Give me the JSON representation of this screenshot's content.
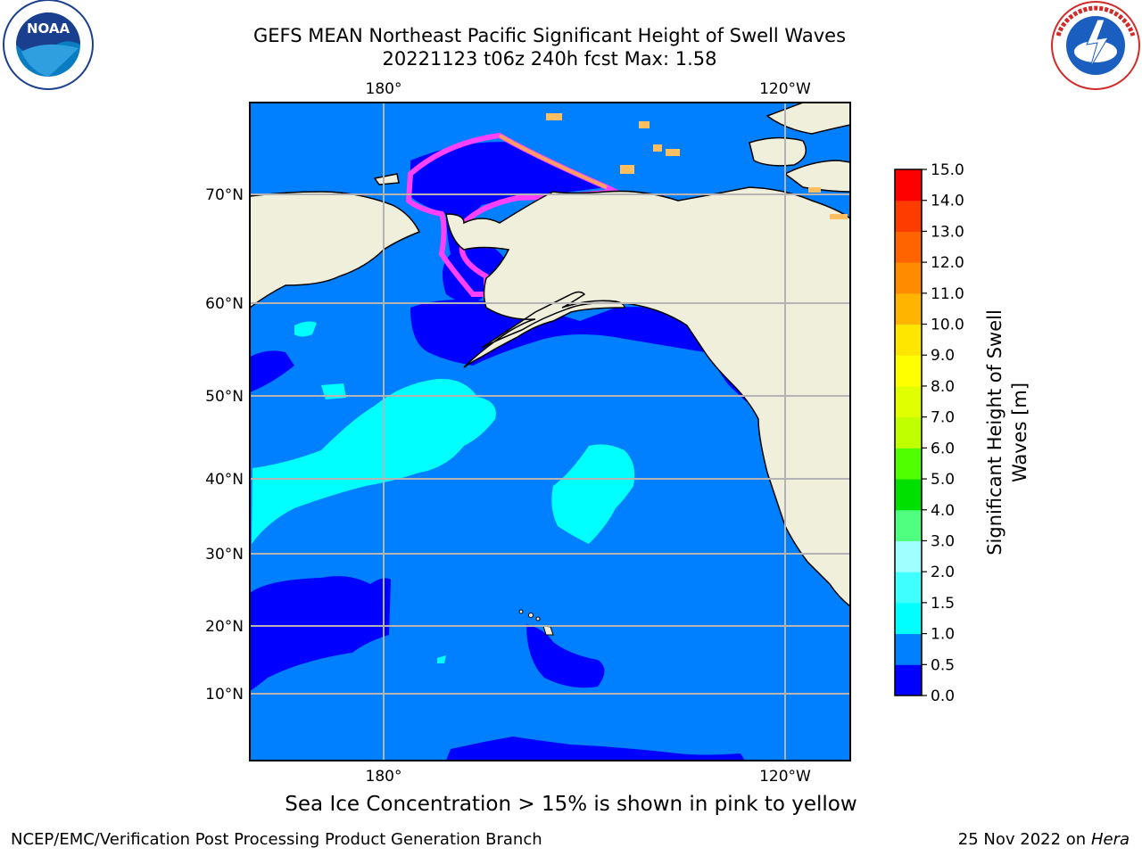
{
  "header": {
    "title_line1": "GEFS MEAN Northeast Pacific Significant Height of Swell Waves",
    "title_line2": "20221123 t06z 240h fcst   Max: 1.58"
  },
  "logos": {
    "left": "NOAA",
    "left_ring": "NATIONAL OCEANIC AND ATMOSPHERIC ADMINISTRATION · U.S. DEPARTMENT OF COMMERCE",
    "right_ring": "NATIONAL WEATHER SERVICE"
  },
  "map": {
    "lon_labels": [
      "180°",
      "120°W"
    ],
    "lat_labels": [
      "70°N",
      "60°N",
      "50°N",
      "40°N",
      "30°N",
      "20°N",
      "10°N"
    ],
    "colors": {
      "land": "#efefdc",
      "ocean_mid": "#0080ff",
      "ocean_low": "#0000ff",
      "ocean_high": "#00ffff",
      "grid": "#b4b4b4"
    }
  },
  "colorbar": {
    "label_line1": "Significant Height of Swell",
    "label_line2": "Waves [m]",
    "ticks": [
      "0.0",
      "0.5",
      "1.0",
      "1.5",
      "2.0",
      "3.0",
      "4.0",
      "5.0",
      "6.0",
      "7.0",
      "8.0",
      "9.0",
      "10.0",
      "11.0",
      "12.0",
      "13.0",
      "14.0",
      "15.0"
    ],
    "colors": [
      "#0000ff",
      "#0080ff",
      "#00ffff",
      "#40ffff",
      "#a0ffff",
      "#50ff80",
      "#00e000",
      "#50ff00",
      "#c0ff00",
      "#e0ff00",
      "#ffff00",
      "#ffe600",
      "#ffb400",
      "#ff8c00",
      "#ff6400",
      "#ff3c00",
      "#ff0000"
    ]
  },
  "footnote": "Sea Ice Concentration > 15% is shown in pink to yellow",
  "footer": {
    "left": "NCEP/EMC/Verification Post Processing Product Generation Branch",
    "right_date": "25 Nov 2022 on",
    "right_system": "Hera"
  }
}
